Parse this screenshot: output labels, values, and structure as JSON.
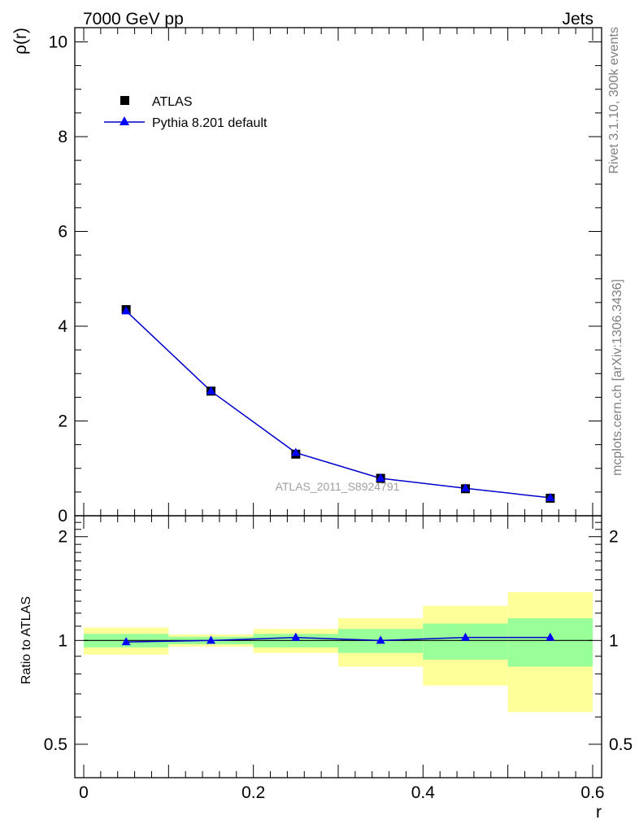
{
  "header": {
    "left": "7000 GeV pp",
    "right": "Jets"
  },
  "side_labels": {
    "rivet": "Rivet 3.1.10,  300k events",
    "mcplots": "mcplots.cern.ch [arXiv:1306.3436]"
  },
  "watermark": "ATLAS_2011_S8924791",
  "colors": {
    "mc_line": "#0000cc",
    "mc_marker": "#0000ff",
    "data_marker": "#000000",
    "band_inner": "#99ff99",
    "band_outer": "#ffff99"
  },
  "chart_data": [
    {
      "type": "scatter",
      "panel": "main",
      "title": "",
      "xlabel": "r",
      "ylabel": "ρ(r)",
      "xlim": [
        0,
        0.6
      ],
      "ylim": [
        0,
        10.3
      ],
      "yticks": [
        0,
        2,
        4,
        6,
        8,
        10
      ],
      "ytick_labels": [
        "0",
        "2",
        "4",
        "6",
        "8",
        "10"
      ],
      "legend_position": "top-left",
      "series": [
        {
          "name": "ATLAS",
          "marker": "square",
          "x": [
            0.05,
            0.15,
            0.25,
            0.35,
            0.45,
            0.55
          ],
          "y": [
            4.35,
            2.63,
            1.3,
            0.79,
            0.57,
            0.37
          ]
        },
        {
          "name": "Pythia 8.201 default",
          "marker": "triangle",
          "x": [
            0.05,
            0.15,
            0.25,
            0.35,
            0.45,
            0.55
          ],
          "y": [
            4.32,
            2.63,
            1.33,
            0.79,
            0.58,
            0.38
          ]
        }
      ]
    },
    {
      "type": "line",
      "panel": "ratio",
      "ylabel": "Ratio to ATLAS",
      "xlabel": "r",
      "xlim": [
        0,
        0.6
      ],
      "ylim": [
        0.4,
        2.3
      ],
      "log_y": true,
      "yticks": [
        0.5,
        1,
        2
      ],
      "ytick_labels": [
        "0.5",
        "1",
        "2"
      ],
      "xticks": [
        0,
        0.2,
        0.4,
        0.6
      ],
      "xtick_labels": [
        "0",
        "0.2",
        "0.4",
        "0.6"
      ],
      "bins": [
        [
          0.0,
          0.1
        ],
        [
          0.1,
          0.2
        ],
        [
          0.2,
          0.3
        ],
        [
          0.3,
          0.4
        ],
        [
          0.4,
          0.5
        ],
        [
          0.5,
          0.6
        ]
      ],
      "band_inner": [
        [
          0.955,
          1.045
        ],
        [
          0.975,
          1.025
        ],
        [
          0.955,
          1.045
        ],
        [
          0.92,
          1.08
        ],
        [
          0.88,
          1.12
        ],
        [
          0.84,
          1.16
        ]
      ],
      "band_outer": [
        [
          0.91,
          1.09
        ],
        [
          0.96,
          1.04
        ],
        [
          0.92,
          1.08
        ],
        [
          0.84,
          1.16
        ],
        [
          0.74,
          1.26
        ],
        [
          0.62,
          1.38
        ]
      ],
      "series": [
        {
          "name": "Pythia 8.201 default",
          "x": [
            0.05,
            0.15,
            0.25,
            0.35,
            0.45,
            0.55
          ],
          "y": [
            0.99,
            1.0,
            1.02,
            1.0,
            1.02,
            1.02
          ]
        }
      ]
    }
  ]
}
